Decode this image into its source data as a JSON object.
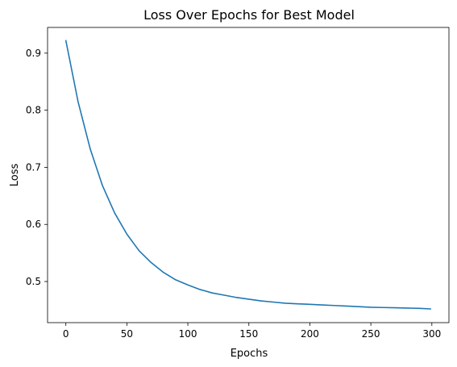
{
  "chart_data": {
    "type": "line",
    "title": "Loss Over Epochs for Best Model",
    "xlabel": "Epochs",
    "ylabel": "Loss",
    "xlim": [
      -15,
      314
    ],
    "ylim": [
      0.428,
      0.945
    ],
    "xticks": [
      0,
      50,
      100,
      150,
      200,
      250,
      300
    ],
    "xtick_labels": [
      "0",
      "50",
      "100",
      "150",
      "200",
      "250",
      "300"
    ],
    "yticks": [
      0.5,
      0.6,
      0.7,
      0.8,
      0.9
    ],
    "ytick_labels": [
      "0.5",
      "0.6",
      "0.7",
      "0.8",
      "0.9"
    ],
    "grid": false,
    "series": [
      {
        "color": "#1f77b4",
        "x": [
          0,
          10,
          20,
          30,
          40,
          50,
          60,
          70,
          80,
          90,
          100,
          110,
          120,
          130,
          140,
          150,
          160,
          170,
          180,
          190,
          200,
          210,
          220,
          230,
          240,
          250,
          260,
          270,
          280,
          290,
          299
        ],
        "y": [
          0.922,
          0.815,
          0.732,
          0.668,
          0.62,
          0.583,
          0.554,
          0.533,
          0.516,
          0.503,
          0.494,
          0.486,
          0.48,
          0.476,
          0.472,
          0.469,
          0.466,
          0.464,
          0.462,
          0.461,
          0.46,
          0.459,
          0.458,
          0.457,
          0.456,
          0.455,
          0.4545,
          0.454,
          0.4535,
          0.453,
          0.452
        ]
      }
    ]
  }
}
